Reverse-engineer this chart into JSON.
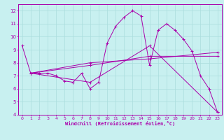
{
  "xlabel": "Windchill (Refroidissement éolien,°C)",
  "bg_color": "#c8f0f0",
  "line_color": "#aa00aa",
  "grid_color": "#aadddd",
  "xlim": [
    -0.5,
    23.5
  ],
  "ylim": [
    4,
    12.5
  ],
  "xticks": [
    0,
    1,
    2,
    3,
    4,
    5,
    6,
    7,
    8,
    9,
    10,
    11,
    12,
    13,
    14,
    15,
    16,
    17,
    18,
    19,
    20,
    21,
    22,
    23
  ],
  "yticks": [
    4,
    5,
    6,
    7,
    8,
    9,
    10,
    11,
    12
  ],
  "line1": [
    [
      0,
      9.3
    ],
    [
      1,
      7.2
    ],
    [
      2,
      7.2
    ],
    [
      3,
      7.2
    ],
    [
      4,
      7.0
    ],
    [
      5,
      6.6
    ],
    [
      6,
      6.5
    ],
    [
      7,
      7.2
    ],
    [
      8,
      6.0
    ],
    [
      9,
      6.5
    ],
    [
      10,
      9.5
    ],
    [
      11,
      10.8
    ],
    [
      12,
      11.5
    ],
    [
      13,
      12.0
    ],
    [
      14,
      11.6
    ],
    [
      15,
      7.8
    ],
    [
      16,
      10.5
    ],
    [
      17,
      11.0
    ],
    [
      18,
      10.5
    ],
    [
      19,
      9.8
    ],
    [
      20,
      8.9
    ],
    [
      21,
      7.0
    ],
    [
      22,
      6.0
    ],
    [
      23,
      4.2
    ]
  ],
  "line2": [
    [
      1,
      7.2
    ],
    [
      8,
      8.0
    ],
    [
      15,
      8.3
    ],
    [
      23,
      8.8
    ]
  ],
  "line3": [
    [
      1,
      7.2
    ],
    [
      8,
      7.8
    ],
    [
      15,
      8.5
    ],
    [
      23,
      8.5
    ]
  ],
  "line4": [
    [
      1,
      7.2
    ],
    [
      8,
      6.5
    ],
    [
      15,
      9.3
    ],
    [
      23,
      4.2
    ]
  ],
  "marker": "+"
}
